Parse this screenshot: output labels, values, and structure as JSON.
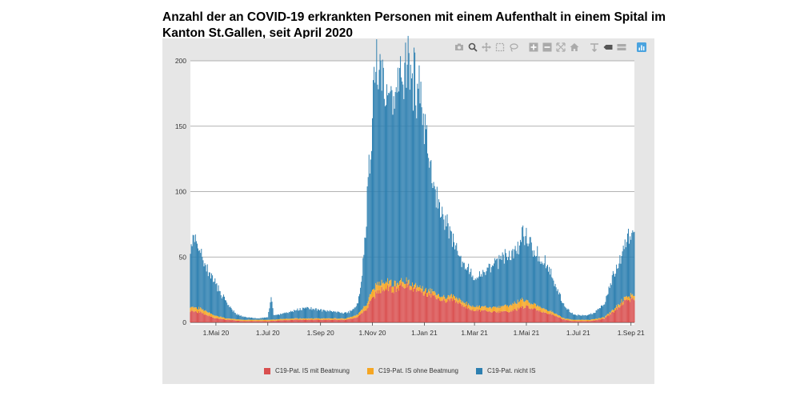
{
  "title": "Anzahl der an COVID-19 erkrankten Personen mit einem Aufenthalt in einem Spital im Kanton St.Gallen, seit April 2020",
  "modebar": [
    "camera-icon",
    "zoom-icon",
    "pan-icon",
    "box-select-icon",
    "lasso-icon",
    "zoom-in-icon",
    "zoom-out-icon",
    "autoscale-icon",
    "home-icon",
    "spike-lines-icon",
    "hover-closest-icon",
    "hover-compare-icon",
    "plotly-logo-icon"
  ],
  "colors": {
    "mit": "#d94f4f",
    "ohne": "#f5a623",
    "nicht": "#2d7fb0",
    "panel": "#e6e6e6",
    "grid": "#9a9a9a"
  },
  "chart_data": {
    "type": "bar",
    "stacked": true,
    "x_range": [
      "2020-04-01",
      "2021-09-05"
    ],
    "ylim": [
      0,
      200
    ],
    "yticks": [
      0,
      50,
      100,
      150,
      200
    ],
    "xticks": [
      {
        "date": "2020-05-01",
        "label": "1.Mai 20"
      },
      {
        "date": "2020-07-01",
        "label": "1.Jul 20"
      },
      {
        "date": "2020-09-01",
        "label": "1.Sep 20"
      },
      {
        "date": "2020-11-01",
        "label": "1.Nov 20"
      },
      {
        "date": "2021-01-01",
        "label": "1.Jan 21"
      },
      {
        "date": "2021-03-01",
        "label": "1.Mar 21"
      },
      {
        "date": "2021-05-01",
        "label": "1.Mai 21"
      },
      {
        "date": "2021-07-01",
        "label": "1.Jul 21"
      },
      {
        "date": "2021-09-01",
        "label": "1.Sep 21"
      }
    ],
    "grid": true,
    "legend_position": "bottom",
    "series": [
      {
        "name": "C19-Pat. IS mit Beatmung",
        "points": [
          [
            "2020-04-01",
            9
          ],
          [
            "2020-04-10",
            8
          ],
          [
            "2020-04-20",
            6
          ],
          [
            "2020-05-01",
            3
          ],
          [
            "2020-05-15",
            2
          ],
          [
            "2020-06-01",
            1
          ],
          [
            "2020-07-01",
            1
          ],
          [
            "2020-08-01",
            2
          ],
          [
            "2020-08-20",
            2
          ],
          [
            "2020-09-15",
            2
          ],
          [
            "2020-10-01",
            2
          ],
          [
            "2020-10-15",
            4
          ],
          [
            "2020-10-25",
            10
          ],
          [
            "2020-11-01",
            18
          ],
          [
            "2020-11-08",
            24
          ],
          [
            "2020-11-15",
            26
          ],
          [
            "2020-11-25",
            25
          ],
          [
            "2020-12-05",
            28
          ],
          [
            "2020-12-15",
            28
          ],
          [
            "2020-12-25",
            25
          ],
          [
            "2021-01-05",
            22
          ],
          [
            "2021-01-15",
            20
          ],
          [
            "2021-01-25",
            16
          ],
          [
            "2021-02-05",
            17
          ],
          [
            "2021-02-15",
            13
          ],
          [
            "2021-02-25",
            10
          ],
          [
            "2021-03-10",
            9
          ],
          [
            "2021-03-25",
            8
          ],
          [
            "2021-04-05",
            8
          ],
          [
            "2021-04-15",
            9
          ],
          [
            "2021-04-25",
            11
          ],
          [
            "2021-05-01",
            12
          ],
          [
            "2021-05-10",
            10
          ],
          [
            "2021-05-20",
            8
          ],
          [
            "2021-06-01",
            6
          ],
          [
            "2021-06-15",
            2
          ],
          [
            "2021-06-25",
            1
          ],
          [
            "2021-07-15",
            1
          ],
          [
            "2021-08-01",
            3
          ],
          [
            "2021-08-15",
            10
          ],
          [
            "2021-08-25",
            17
          ],
          [
            "2021-09-05",
            18
          ]
        ]
      },
      {
        "name": "C19-Pat. IS ohne Beatmung",
        "points": [
          [
            "2020-04-01",
            3
          ],
          [
            "2020-04-20",
            3
          ],
          [
            "2020-05-01",
            2
          ],
          [
            "2020-05-15",
            1
          ],
          [
            "2020-06-01",
            1
          ],
          [
            "2020-07-01",
            1
          ],
          [
            "2020-08-01",
            1
          ],
          [
            "2020-09-15",
            1
          ],
          [
            "2020-10-01",
            1
          ],
          [
            "2020-10-15",
            2
          ],
          [
            "2020-10-25",
            4
          ],
          [
            "2020-11-01",
            6
          ],
          [
            "2020-11-10",
            6
          ],
          [
            "2020-11-20",
            5
          ],
          [
            "2020-12-01",
            4
          ],
          [
            "2020-12-15",
            3
          ],
          [
            "2021-01-01",
            3
          ],
          [
            "2021-01-15",
            3
          ],
          [
            "2021-02-01",
            3
          ],
          [
            "2021-02-15",
            3
          ],
          [
            "2021-03-01",
            3
          ],
          [
            "2021-03-15",
            3
          ],
          [
            "2021-04-01",
            4
          ],
          [
            "2021-04-15",
            5
          ],
          [
            "2021-04-25",
            6
          ],
          [
            "2021-05-05",
            4
          ],
          [
            "2021-05-20",
            3
          ],
          [
            "2021-06-01",
            2
          ],
          [
            "2021-06-15",
            1
          ],
          [
            "2021-07-15",
            1
          ],
          [
            "2021-08-01",
            1
          ],
          [
            "2021-08-15",
            2
          ],
          [
            "2021-09-05",
            3
          ]
        ]
      },
      {
        "name": "C19-Pat. nicht IS",
        "points": [
          [
            "2020-04-01",
            48
          ],
          [
            "2020-04-08",
            52
          ],
          [
            "2020-04-15",
            38
          ],
          [
            "2020-04-25",
            30
          ],
          [
            "2020-05-05",
            20
          ],
          [
            "2020-05-15",
            10
          ],
          [
            "2020-05-25",
            4
          ],
          [
            "2020-06-05",
            2
          ],
          [
            "2020-06-20",
            1
          ],
          [
            "2020-07-01",
            2
          ],
          [
            "2020-07-05",
            18
          ],
          [
            "2020-07-08",
            3
          ],
          [
            "2020-07-20",
            4
          ],
          [
            "2020-08-01",
            6
          ],
          [
            "2020-08-15",
            8
          ],
          [
            "2020-08-25",
            7
          ],
          [
            "2020-09-05",
            6
          ],
          [
            "2020-09-20",
            5
          ],
          [
            "2020-10-05",
            4
          ],
          [
            "2020-10-15",
            8
          ],
          [
            "2020-10-20",
            25
          ],
          [
            "2020-10-25",
            70
          ],
          [
            "2020-10-30",
            110
          ],
          [
            "2020-11-03",
            160
          ],
          [
            "2020-11-06",
            165
          ],
          [
            "2020-11-12",
            150
          ],
          [
            "2020-11-18",
            140
          ],
          [
            "2020-11-25",
            130
          ],
          [
            "2020-12-01",
            145
          ],
          [
            "2020-12-08",
            160
          ],
          [
            "2020-12-12",
            170
          ],
          [
            "2020-12-18",
            160
          ],
          [
            "2020-12-25",
            150
          ],
          [
            "2020-12-30",
            140
          ],
          [
            "2021-01-05",
            110
          ],
          [
            "2021-01-12",
            85
          ],
          [
            "2021-01-20",
            70
          ],
          [
            "2021-01-28",
            55
          ],
          [
            "2021-02-05",
            40
          ],
          [
            "2021-02-12",
            30
          ],
          [
            "2021-02-20",
            28
          ],
          [
            "2021-03-01",
            22
          ],
          [
            "2021-03-10",
            25
          ],
          [
            "2021-03-20",
            30
          ],
          [
            "2021-04-01",
            35
          ],
          [
            "2021-04-10",
            38
          ],
          [
            "2021-04-20",
            40
          ],
          [
            "2021-04-28",
            50
          ],
          [
            "2021-05-05",
            45
          ],
          [
            "2021-05-15",
            40
          ],
          [
            "2021-05-25",
            35
          ],
          [
            "2021-06-05",
            20
          ],
          [
            "2021-06-15",
            10
          ],
          [
            "2021-06-25",
            4
          ],
          [
            "2021-07-10",
            3
          ],
          [
            "2021-07-20",
            5
          ],
          [
            "2021-08-01",
            10
          ],
          [
            "2021-08-10",
            25
          ],
          [
            "2021-08-20",
            35
          ],
          [
            "2021-08-28",
            48
          ],
          [
            "2021-09-05",
            45
          ]
        ]
      }
    ]
  }
}
